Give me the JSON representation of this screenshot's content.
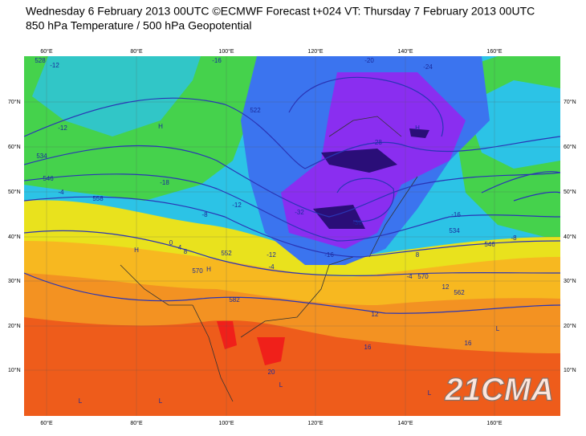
{
  "header": {
    "line1": "Wednesday 6 February 2013 00UTC ©ECMWF Forecast t+024 VT: Thursday 7 February 2013 00UTC",
    "line2": "850 hPa Temperature / 500 hPa Geopotential"
  },
  "map": {
    "lon_labels": [
      "60°E",
      "80°E",
      "100°E",
      "120°E",
      "140°E",
      "160°E"
    ],
    "lat_labels": [
      "70°N",
      "60°N",
      "50°N",
      "40°N",
      "30°N",
      "20°N",
      "10°N"
    ],
    "contour_labels": [
      "-12",
      "528",
      "-16",
      "-20",
      "-24",
      "-12",
      "534",
      "546",
      "-4",
      "558",
      "-18",
      "-8",
      "-12",
      "-28",
      "-32",
      "-36",
      "-16",
      "-12",
      "-4",
      "0",
      "4",
      "8",
      "570",
      "582",
      "12",
      "16",
      "20",
      "552",
      "522",
      "-16",
      "-8",
      "534",
      "546",
      "-4",
      "8",
      "570",
      "12",
      "16",
      "562"
    ],
    "pressure_labels": [
      "H",
      "H",
      "H",
      "L",
      "L",
      "L",
      "H",
      "L",
      "L"
    ]
  },
  "watermark": "21CMA"
}
